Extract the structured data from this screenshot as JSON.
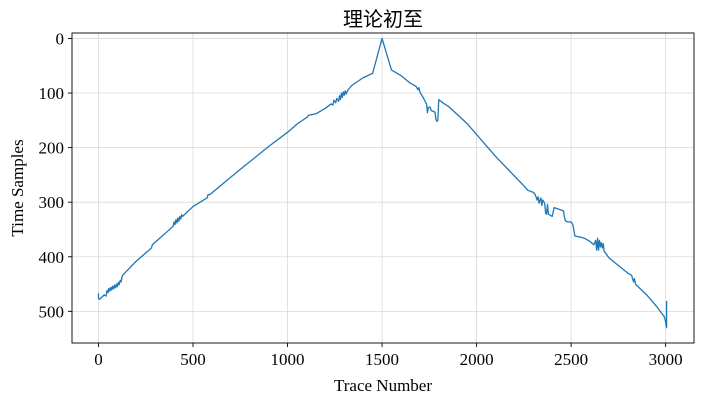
{
  "chart_data": {
    "type": "line",
    "title": "理论初至",
    "xlabel": "Trace Number",
    "ylabel": "Time Samples",
    "xlim": [
      -140,
      3150
    ],
    "ylim": [
      558,
      -10
    ],
    "y_inverted": true,
    "grid": true,
    "x_ticks": [
      0,
      500,
      1000,
      1500,
      2000,
      2500,
      3000
    ],
    "y_ticks": [
      0,
      100,
      200,
      300,
      400,
      500
    ],
    "x_tick_labels": [
      "0",
      "500",
      "1000",
      "1500",
      "2000",
      "2500",
      "3000"
    ],
    "y_tick_labels": [
      "0",
      "100",
      "200",
      "300",
      "400",
      "500"
    ],
    "series": [
      {
        "color": "#1f77b4",
        "points": [
          [
            0,
            468
          ],
          [
            0,
            476
          ],
          [
            5,
            478
          ],
          [
            30,
            470
          ],
          [
            40,
            472
          ],
          [
            45,
            462
          ],
          [
            50,
            466
          ],
          [
            55,
            458
          ],
          [
            60,
            463
          ],
          [
            65,
            456
          ],
          [
            70,
            461
          ],
          [
            75,
            454
          ],
          [
            80,
            459
          ],
          [
            85,
            452
          ],
          [
            90,
            457
          ],
          [
            95,
            450
          ],
          [
            100,
            455
          ],
          [
            105,
            447
          ],
          [
            110,
            451
          ],
          [
            115,
            443
          ],
          [
            120,
            446
          ],
          [
            125,
            436
          ],
          [
            130,
            433
          ],
          [
            200,
            408
          ],
          [
            280,
            384
          ],
          [
            285,
            378
          ],
          [
            370,
            352
          ],
          [
            395,
            344
          ],
          [
            400,
            336
          ],
          [
            405,
            341
          ],
          [
            410,
            332
          ],
          [
            415,
            338
          ],
          [
            420,
            329
          ],
          [
            425,
            335
          ],
          [
            430,
            326
          ],
          [
            435,
            331
          ],
          [
            440,
            323
          ],
          [
            445,
            326
          ],
          [
            500,
            308
          ],
          [
            575,
            292
          ],
          [
            580,
            286
          ],
          [
            590,
            286
          ],
          [
            700,
            254
          ],
          [
            800,
            226
          ],
          [
            900,
            198
          ],
          [
            1000,
            172
          ],
          [
            1050,
            157
          ],
          [
            1100,
            145
          ],
          [
            1105,
            144
          ],
          [
            1110,
            141
          ],
          [
            1150,
            138
          ],
          [
            1200,
            128
          ],
          [
            1230,
            120
          ],
          [
            1240,
            122
          ],
          [
            1245,
            113
          ],
          [
            1255,
            118
          ],
          [
            1260,
            110
          ],
          [
            1270,
            115
          ],
          [
            1275,
            105
          ],
          [
            1280,
            112
          ],
          [
            1285,
            100
          ],
          [
            1290,
            108
          ],
          [
            1295,
            98
          ],
          [
            1300,
            104
          ],
          [
            1305,
            96
          ],
          [
            1310,
            102
          ],
          [
            1320,
            94
          ],
          [
            1340,
            86
          ],
          [
            1400,
            72
          ],
          [
            1450,
            64
          ],
          [
            1500,
            0
          ],
          [
            1550,
            58
          ],
          [
            1600,
            68
          ],
          [
            1650,
            82
          ],
          [
            1680,
            88
          ],
          [
            1690,
            94
          ],
          [
            1695,
            90
          ],
          [
            1700,
            98
          ],
          [
            1720,
            110
          ],
          [
            1735,
            120
          ],
          [
            1740,
            136
          ],
          [
            1745,
            126
          ],
          [
            1755,
            126
          ],
          [
            1760,
            132
          ],
          [
            1780,
            135
          ],
          [
            1785,
            148
          ],
          [
            1790,
            152
          ],
          [
            1795,
            150
          ],
          [
            1800,
            112
          ],
          [
            1830,
            120
          ],
          [
            1850,
            124
          ],
          [
            1900,
            140
          ],
          [
            1950,
            156
          ],
          [
            2000,
            176
          ],
          [
            2050,
            196
          ],
          [
            2100,
            216
          ],
          [
            2150,
            234
          ],
          [
            2200,
            252
          ],
          [
            2250,
            270
          ],
          [
            2270,
            278
          ],
          [
            2300,
            282
          ],
          [
            2310,
            286
          ],
          [
            2320,
            296
          ],
          [
            2325,
            290
          ],
          [
            2330,
            302
          ],
          [
            2340,
            292
          ],
          [
            2345,
            306
          ],
          [
            2350,
            296
          ],
          [
            2360,
            302
          ],
          [
            2365,
            320
          ],
          [
            2370,
            322
          ],
          [
            2375,
            304
          ],
          [
            2380,
            322
          ],
          [
            2400,
            326
          ],
          [
            2410,
            310
          ],
          [
            2460,
            316
          ],
          [
            2465,
            328
          ],
          [
            2470,
            334
          ],
          [
            2480,
            336
          ],
          [
            2500,
            336
          ],
          [
            2510,
            342
          ],
          [
            2520,
            362
          ],
          [
            2550,
            364
          ],
          [
            2570,
            366
          ],
          [
            2600,
            372
          ],
          [
            2620,
            378
          ],
          [
            2630,
            370
          ],
          [
            2635,
            388
          ],
          [
            2640,
            366
          ],
          [
            2645,
            388
          ],
          [
            2650,
            370
          ],
          [
            2655,
            382
          ],
          [
            2660,
            374
          ],
          [
            2665,
            384
          ],
          [
            2670,
            376
          ],
          [
            2675,
            390
          ],
          [
            2680,
            392
          ],
          [
            2700,
            402
          ],
          [
            2750,
            416
          ],
          [
            2800,
            430
          ],
          [
            2820,
            434
          ],
          [
            2830,
            446
          ],
          [
            2835,
            440
          ],
          [
            2840,
            450
          ],
          [
            2900,
            470
          ],
          [
            2950,
            490
          ],
          [
            2980,
            504
          ],
          [
            2990,
            508
          ],
          [
            2995,
            512
          ],
          [
            3000,
            520
          ],
          [
            3005,
            530
          ],
          [
            3005,
            482
          ]
        ]
      }
    ]
  }
}
